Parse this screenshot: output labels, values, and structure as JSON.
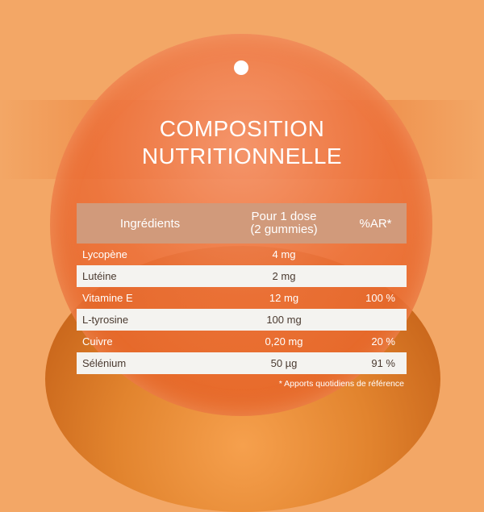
{
  "title": {
    "line1": "COMPOSITION",
    "line2": "NUTRITIONNELLE"
  },
  "table": {
    "headers": {
      "ingredient": "Ingrédients",
      "dose_line1": "Pour 1 dose",
      "dose_line2": "(2 gummies)",
      "ar": "%AR*"
    },
    "rows": [
      {
        "ingredient": "Lycopène",
        "dose": "4 mg",
        "ar": ""
      },
      {
        "ingredient": "Lutéine",
        "dose": "2 mg",
        "ar": ""
      },
      {
        "ingredient": "Vitamine E",
        "dose": "12 mg",
        "ar": "100 %"
      },
      {
        "ingredient": "L-tyrosine",
        "dose": "100 mg",
        "ar": ""
      },
      {
        "ingredient": "Cuivre",
        "dose": "0,20 mg",
        "ar": "20 %"
      },
      {
        "ingredient": "Sélénium",
        "dose": "50 µg",
        "ar": "91 %"
      }
    ]
  },
  "footnote": "* Apports quotidiens de référence",
  "colors": {
    "background": "#f3a766",
    "header_bg": "#d19a7b",
    "light_row_bg": "#f4f3f0",
    "text_dark": "#4a3a30"
  }
}
